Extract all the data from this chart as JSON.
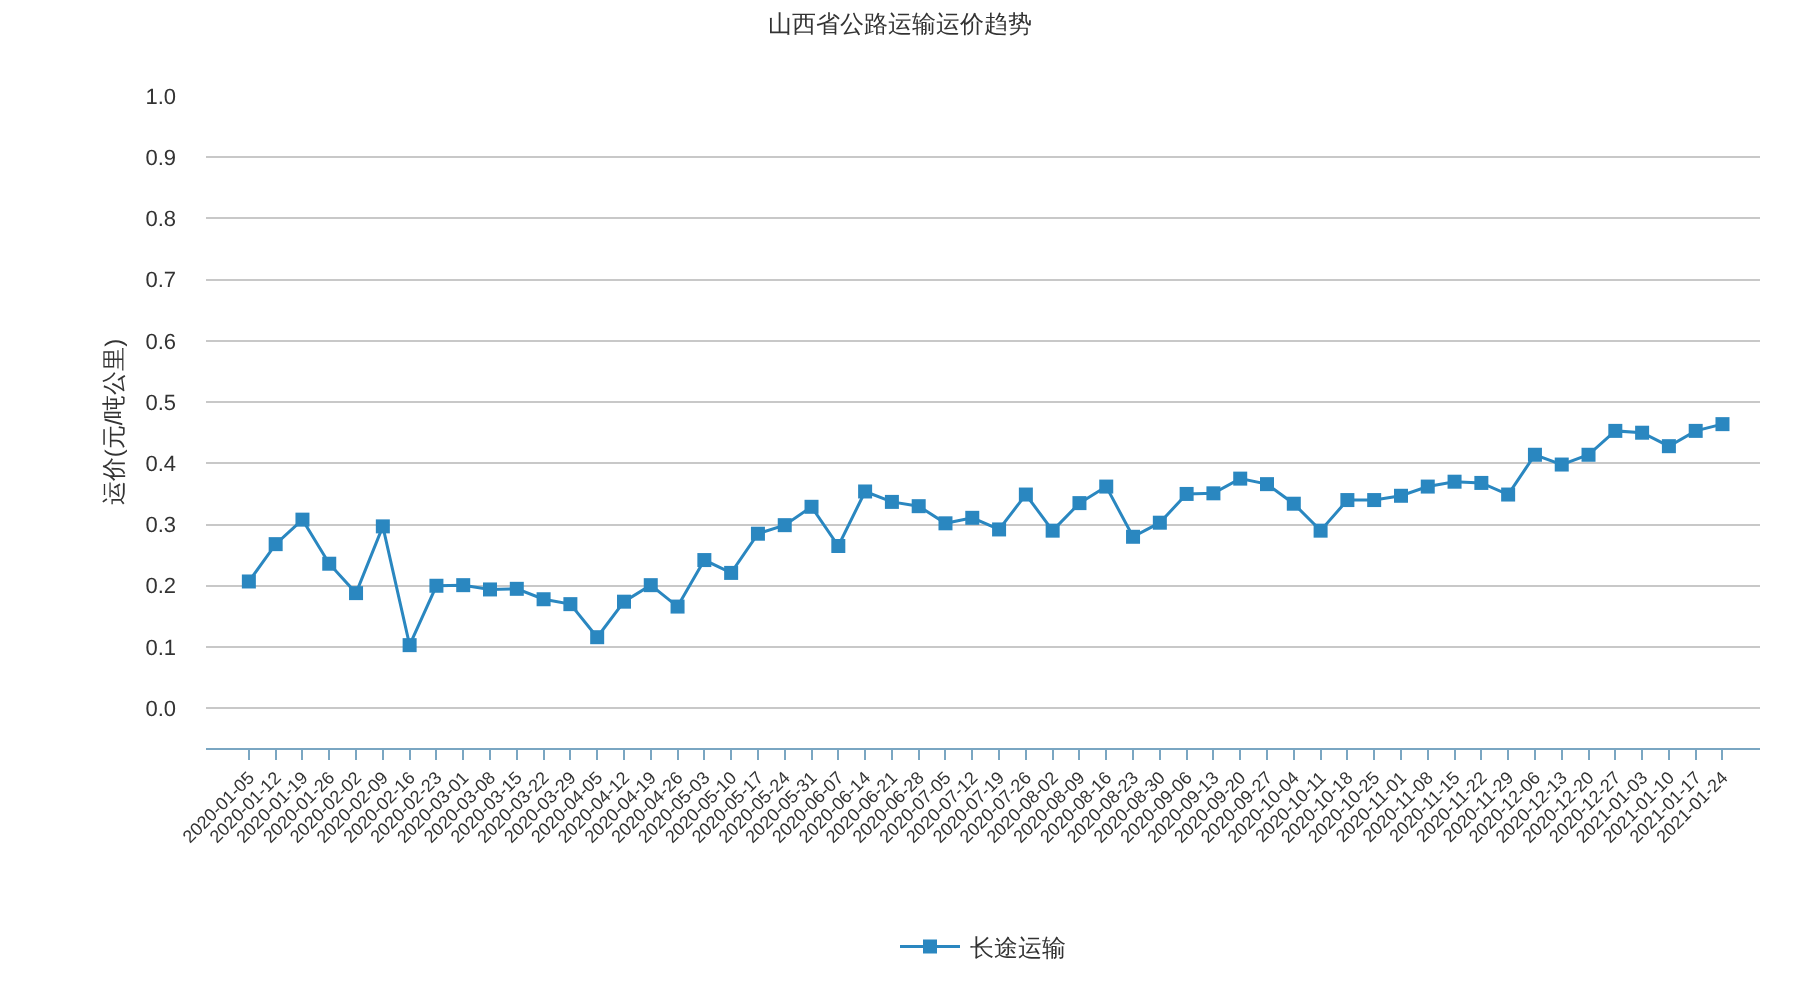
{
  "chart_data": {
    "type": "line",
    "title": "山西省公路运输运价趋势",
    "ylabel": "运价(元/吨公里)",
    "categories": [
      "2020-01-05",
      "2020-01-12",
      "2020-01-19",
      "2020-01-26",
      "2020-02-02",
      "2020-02-09",
      "2020-02-16",
      "2020-02-23",
      "2020-03-01",
      "2020-03-08",
      "2020-03-15",
      "2020-03-22",
      "2020-03-29",
      "2020-04-05",
      "2020-04-12",
      "2020-04-19",
      "2020-04-26",
      "2020-05-03",
      "2020-05-10",
      "2020-05-17",
      "2020-05-24",
      "2020-05-31",
      "2020-06-07",
      "2020-06-14",
      "2020-06-21",
      "2020-06-28",
      "2020-07-05",
      "2020-07-12",
      "2020-07-19",
      "2020-07-26",
      "2020-08-02",
      "2020-08-09",
      "2020-08-16",
      "2020-08-23",
      "2020-08-30",
      "2020-09-06",
      "2020-09-13",
      "2020-09-20",
      "2020-09-27",
      "2020-10-04",
      "2020-10-11",
      "2020-10-18",
      "2020-10-25",
      "2020-11-01",
      "2020-11-08",
      "2020-11-15",
      "2020-11-22",
      "2020-11-29",
      "2020-12-06",
      "2020-12-13",
      "2020-12-20",
      "2020-12-27",
      "2021-01-03",
      "2021-01-10",
      "2021-01-17",
      "2021-01-24"
    ],
    "series": [
      {
        "name": "长途运输",
        "color": "#2a87c0",
        "values": [
          0.207,
          0.268,
          0.308,
          0.236,
          0.188,
          0.297,
          0.103,
          0.2,
          0.201,
          0.194,
          0.195,
          0.178,
          0.17,
          0.116,
          0.174,
          0.201,
          0.166,
          0.242,
          0.221,
          0.285,
          0.299,
          0.329,
          0.265,
          0.354,
          0.337,
          0.33,
          0.302,
          0.311,
          0.292,
          0.349,
          0.29,
          0.335,
          0.362,
          0.28,
          0.303,
          0.35,
          0.351,
          0.375,
          0.366,
          0.334,
          0.29,
          0.34,
          0.34,
          0.347,
          0.362,
          0.37,
          0.368,
          0.349,
          0.414,
          0.398,
          0.414,
          0.453,
          0.45,
          0.428,
          0.453,
          0.464
        ]
      }
    ],
    "ylim": [
      -0.065,
      1
    ],
    "yticks": [
      {
        "value": 0,
        "label": "0.0"
      },
      0.1,
      0.2,
      0.3,
      0.4,
      0.5,
      0.6,
      0.7,
      0.8,
      0.9,
      {
        "value": 1,
        "label": "1.0"
      }
    ],
    "grid": "y",
    "legend": "bottom",
    "marker": "square",
    "line_style": "solid"
  }
}
